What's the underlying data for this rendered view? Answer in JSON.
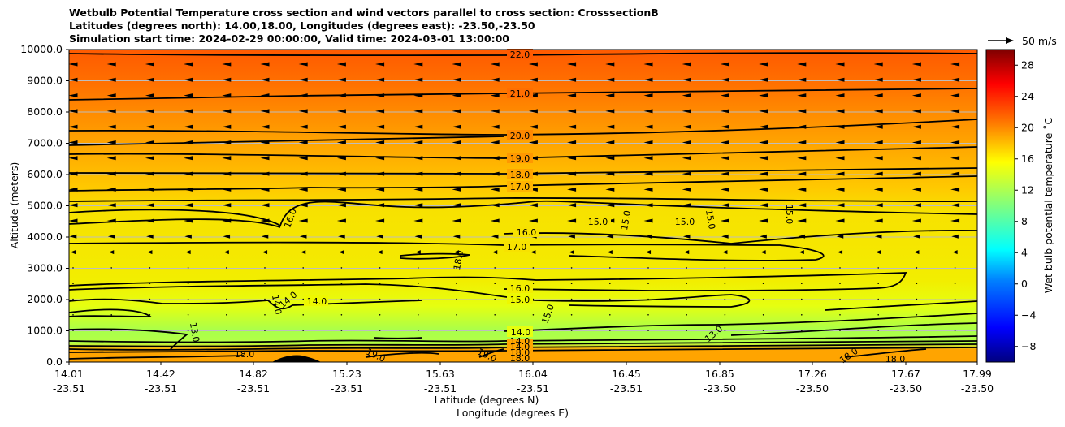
{
  "chart_data": {
    "type": "heatmap",
    "title_lines": [
      "Wetbulb Potential Temperature cross section and wind vectors parallel to cross section: CrosssectionB",
      "Latitudes (degrees north): 14.00,18.00, Longitudes (degrees east): -23.50,-23.50",
      "Simulation start time: 2024-02-29 00:00:00, Valid time: 2024-03-01 13:00:00"
    ],
    "ylabel": "Altitude (meters)",
    "xlabel_lat": "Latitude (degrees N)",
    "xlabel_lon": "Longitude (degrees E)",
    "ylim": [
      0,
      10000
    ],
    "y_ticks": [
      "0.0",
      "1000.0",
      "2000.0",
      "3000.0",
      "4000.0",
      "5000.0",
      "6000.0",
      "7000.0",
      "8000.0",
      "9000.0",
      "10000.0"
    ],
    "x_ticks": [
      {
        "lat": "14.01",
        "lon": "-23.51"
      },
      {
        "lat": "14.42",
        "lon": "-23.51"
      },
      {
        "lat": "14.82",
        "lon": "-23.51"
      },
      {
        "lat": "15.23",
        "lon": "-23.51"
      },
      {
        "lat": "15.63",
        "lon": "-23.51"
      },
      {
        "lat": "16.04",
        "lon": "-23.51"
      },
      {
        "lat": "16.45",
        "lon": "-23.51"
      },
      {
        "lat": "16.85",
        "lon": "-23.50"
      },
      {
        "lat": "17.26",
        "lon": "-23.50"
      },
      {
        "lat": "17.67",
        "lon": "-23.50"
      },
      {
        "lat": "17.99",
        "lon": "-23.50"
      }
    ],
    "colorbar": {
      "label": "Wet bulb potential temperature ˚C",
      "range": [
        -10,
        30
      ],
      "ticks": [
        "−8",
        "−4",
        "0",
        "4",
        "8",
        "12",
        "16",
        "20",
        "24",
        "28"
      ],
      "colors": [
        "#00007f",
        "#0000ff",
        "#007fff",
        "#00ffff",
        "#7fff7f",
        "#ffff00",
        "#ff7f00",
        "#ff0000",
        "#7f0000"
      ]
    },
    "wind_key": "50 m/s",
    "grid": true,
    "contour_levels": [
      {
        "label": "22.0",
        "altitude": 9950
      },
      {
        "label": "21.0",
        "altitude": 8550
      },
      {
        "label": "20.0",
        "altitude": 7300
      },
      {
        "label": "19.0",
        "altitude": 6600
      },
      {
        "label": "18.0",
        "altitude": 6050
      },
      {
        "label": "17.0",
        "altitude": 5450
      },
      {
        "label": "16.0",
        "altitude": 4100
      },
      {
        "label": "17.0",
        "altitude": 3700
      },
      {
        "label": "16.0",
        "altitude": 2400
      },
      {
        "label": "15.0",
        "altitude": 2000
      },
      {
        "label": "14.0",
        "altitude": 1000
      },
      {
        "label": "15.0",
        "altitude": 4500
      },
      {
        "label": "14.0",
        "altitude": 1950
      },
      {
        "label": "13.0",
        "altitude": 750
      },
      {
        "label": "18.0",
        "altitude": 300
      },
      {
        "label": "19.0",
        "altitude": 200
      }
    ]
  }
}
